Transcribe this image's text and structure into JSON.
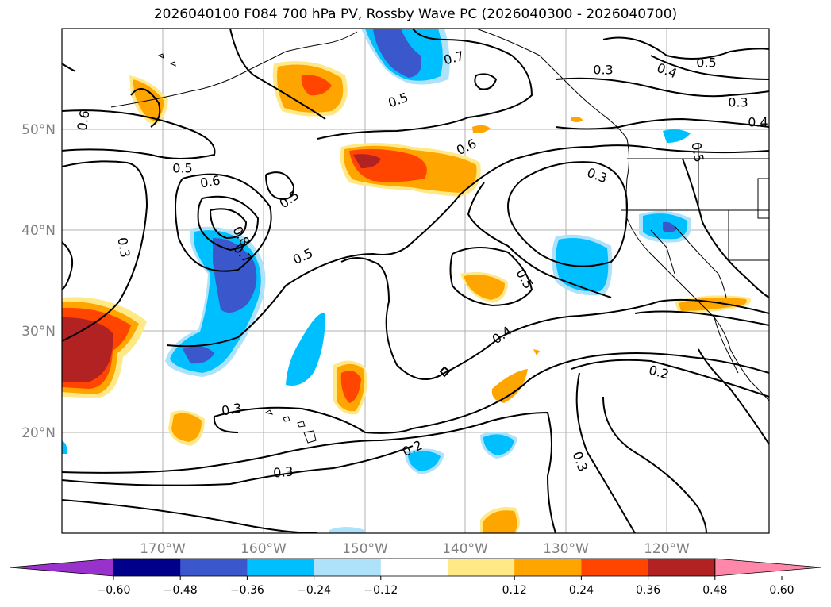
{
  "title": "2026040100 F084 700 hPa PV, Rossby Wave PC (2026040300 - 2026040700)",
  "map": {
    "lat_labels": [
      "50°N",
      "40°N",
      "30°N",
      "20°N"
    ],
    "lon_labels": [
      "170°W",
      "160°W",
      "150°W",
      "140°W",
      "130°W",
      "120°W"
    ],
    "contour_labels": [
      "0.6",
      "0.5",
      "0.6",
      "0.5",
      "0.8",
      "0.7",
      "0.3",
      "0.5",
      "0.7",
      "0.5",
      "0.6",
      "0.3",
      "0.5",
      "0.3",
      "0.4",
      "0.5",
      "0.3",
      "0.4",
      "0.5",
      "0.4",
      "0.2",
      "0.3",
      "0.3",
      "0.2",
      "0.3"
    ]
  },
  "colorbar": {
    "ticks": [
      "−0.60",
      "−0.48",
      "−0.36",
      "−0.24",
      "−0.12",
      "0.12",
      "0.24",
      "0.36",
      "0.48",
      "0.60"
    ],
    "colors": [
      "#9932cc",
      "#00008b",
      "#3a57cc",
      "#00bfff",
      "#aee2fb",
      "#ffffff",
      "#ffe987",
      "#ffa500",
      "#ff4500",
      "#b22222",
      "#ff88aa"
    ]
  }
}
